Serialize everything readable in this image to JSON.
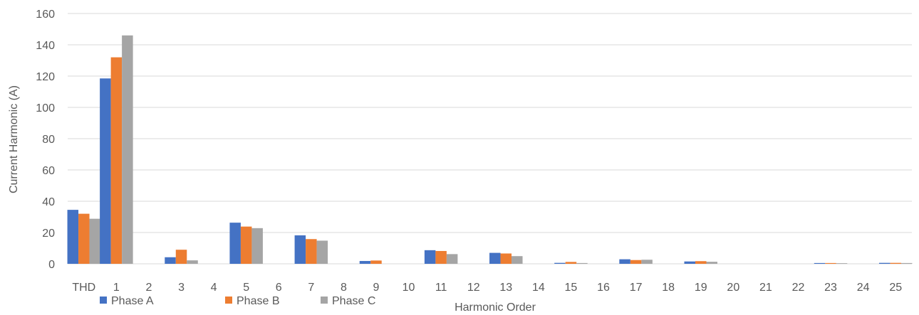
{
  "chart_data": {
    "type": "bar",
    "title": "",
    "xlabel": "Harmonic Order",
    "ylabel": "Current Harmonic (A)",
    "ylim": [
      0,
      160
    ],
    "yticks": [
      0,
      20,
      40,
      60,
      80,
      100,
      120,
      140,
      160
    ],
    "grid": true,
    "legend_position": "bottom-left",
    "categories": [
      "THD",
      "1",
      "2",
      "3",
      "4",
      "5",
      "6",
      "7",
      "8",
      "9",
      "10",
      "11",
      "12",
      "13",
      "14",
      "15",
      "16",
      "17",
      "18",
      "19",
      "20",
      "21",
      "22",
      "23",
      "24",
      "25"
    ],
    "series": [
      {
        "name": "Phase A",
        "color": "#4472C4",
        "values": [
          34.5,
          118.5,
          0,
          4.2,
          0,
          26.3,
          0,
          18.2,
          0,
          1.8,
          0,
          8.7,
          0,
          7.0,
          0,
          0.6,
          0,
          2.9,
          0,
          1.5,
          0,
          0,
          0,
          0.5,
          0,
          0.6
        ]
      },
      {
        "name": "Phase B",
        "color": "#ED7D31",
        "values": [
          32.0,
          132.0,
          0,
          9.0,
          0,
          23.8,
          0,
          15.8,
          0,
          2.1,
          0,
          8.2,
          0,
          6.6,
          0,
          1.2,
          0,
          2.4,
          0,
          1.7,
          0,
          0,
          0,
          0.5,
          0,
          0.6
        ]
      },
      {
        "name": "Phase C",
        "color": "#A5A5A5",
        "values": [
          28.8,
          146.0,
          0,
          2.2,
          0,
          22.8,
          0,
          14.8,
          0,
          0,
          0,
          6.2,
          0,
          4.9,
          0,
          0.5,
          0,
          2.6,
          0,
          1.3,
          0,
          0,
          0,
          0.4,
          0,
          0.5
        ]
      }
    ]
  }
}
